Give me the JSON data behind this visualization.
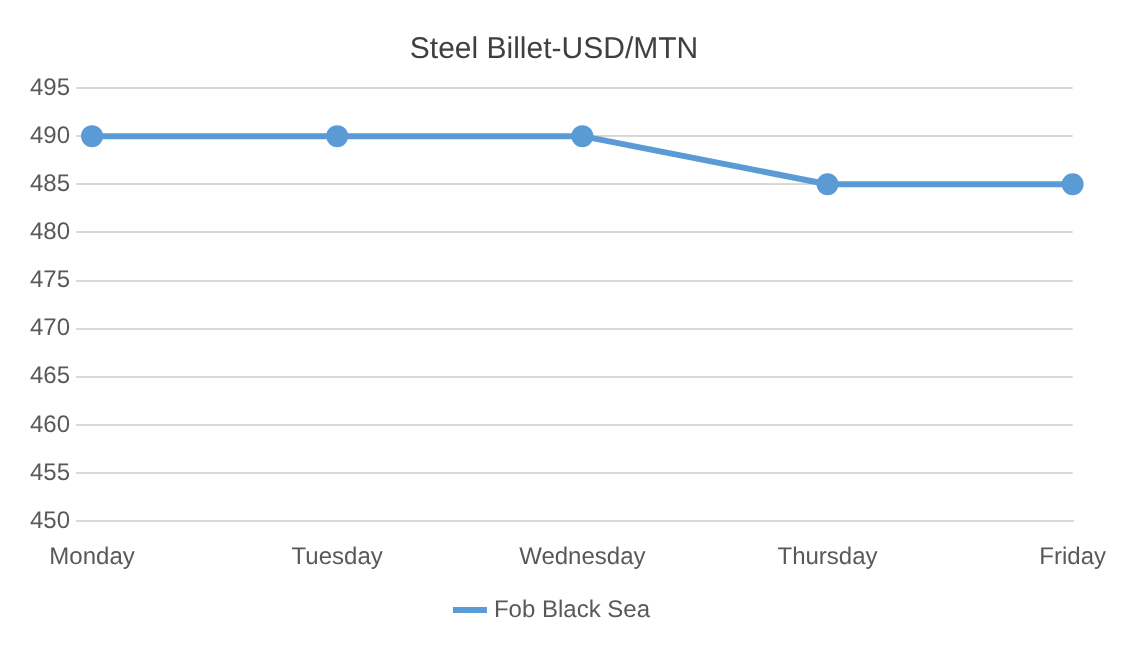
{
  "chart_data": {
    "type": "line",
    "title": "Steel Billet-USD/MTN",
    "categories": [
      "Monday",
      "Tuesday",
      "Wednesday",
      "Thursday",
      "Friday"
    ],
    "series": [
      {
        "name": "Fob Black Sea",
        "color": "#5b9bd5",
        "values": [
          490,
          490,
          490,
          485,
          485
        ]
      }
    ],
    "ylim": [
      450,
      495
    ],
    "yticks": [
      450,
      455,
      460,
      465,
      470,
      475,
      480,
      485,
      490,
      495
    ],
    "grid": "y",
    "legend": "bottom",
    "marker": "circle",
    "line_style": "solid"
  }
}
